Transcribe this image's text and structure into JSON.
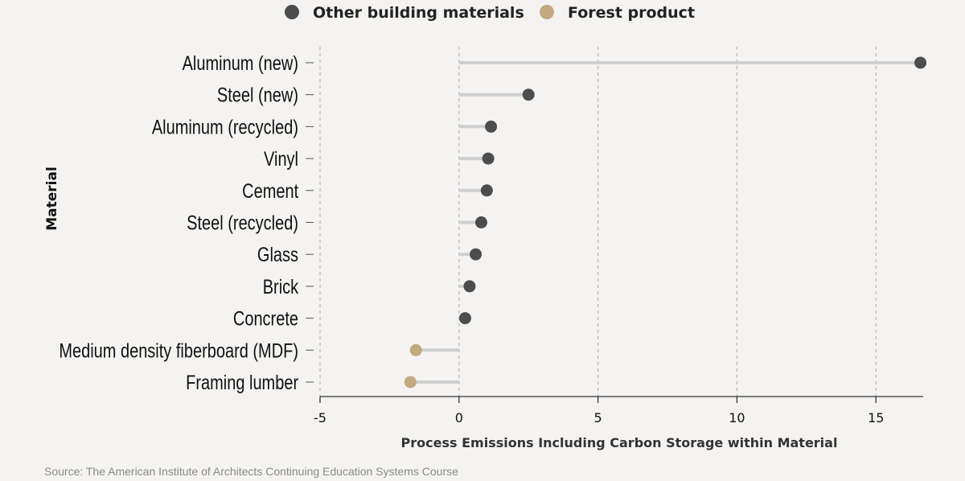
{
  "chart_data": {
    "type": "lollipop",
    "categories": [
      "Aluminum (new)",
      "Steel (new)",
      "Aluminum (recycled)",
      "Vinyl",
      "Cement",
      "Steel (recycled)",
      "Glass",
      "Brick",
      "Concrete",
      "Medium density fiberboard (MDF)",
      "Framing lumber"
    ],
    "values": [
      16.6,
      2.5,
      1.15,
      1.05,
      1.0,
      0.8,
      0.6,
      0.38,
      0.22,
      -1.55,
      -1.75
    ],
    "groups": [
      "Other building materials",
      "Other building materials",
      "Other building materials",
      "Other building materials",
      "Other building materials",
      "Other building materials",
      "Other building materials",
      "Other building materials",
      "Other building materials",
      "Forest product",
      "Forest product"
    ],
    "legend": [
      {
        "name": "Other building materials",
        "color": "#4d4d4d"
      },
      {
        "name": "Forest product",
        "color": "#c2a97f"
      }
    ],
    "xlim": [
      -5,
      16.7
    ],
    "xticks": [
      -5,
      0,
      5,
      10,
      15
    ],
    "xlabel": "Process Emissions Including Carbon Storage within Material",
    "ylabel": "Material",
    "grid": "vertical dashed",
    "legend_position": "top"
  },
  "source": "Source: The American Institute of Architects Continuing Education Systems Course"
}
